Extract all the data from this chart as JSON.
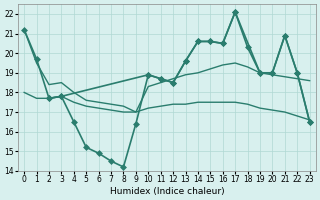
{
  "xlabel": "Humidex (Indice chaleur)",
  "ylabel": "",
  "xlim": [
    -0.5,
    23.5
  ],
  "ylim": [
    14,
    22.5
  ],
  "yticks": [
    14,
    15,
    16,
    17,
    18,
    19,
    20,
    21,
    22
  ],
  "xticks": [
    0,
    1,
    2,
    3,
    4,
    5,
    6,
    7,
    8,
    9,
    10,
    11,
    12,
    13,
    14,
    15,
    16,
    17,
    18,
    19,
    20,
    21,
    22,
    23
  ],
  "background_color": "#d8f0ee",
  "line_color": "#2a7d6e",
  "grid_color": "#b0d8d4",
  "series": [
    {
      "x": [
        0,
        1,
        2,
        3,
        4,
        5,
        6,
        7,
        8,
        9,
        10,
        11,
        12,
        13,
        14,
        15,
        16,
        17,
        18,
        19,
        20,
        21,
        22,
        23
      ],
      "y": [
        21.2,
        19.7,
        17.7,
        17.8,
        16.5,
        15.2,
        14.9,
        14.5,
        14.2,
        16.4,
        18.9,
        18.7,
        18.5,
        19.6,
        20.6,
        20.6,
        20.5,
        22.1,
        20.3,
        19.0,
        19.0,
        20.9,
        19.0,
        16.5
      ],
      "marker": "D",
      "markersize": 3,
      "linewidth": 1.2,
      "has_marker": true
    },
    {
      "x": [
        0,
        1,
        2,
        3,
        4,
        5,
        6,
        7,
        8,
        9,
        10,
        11,
        12,
        13,
        14,
        15,
        16,
        17,
        18,
        19,
        20,
        21,
        22,
        23
      ],
      "y": [
        21.2,
        19.5,
        18.4,
        18.5,
        18.0,
        17.6,
        17.5,
        17.4,
        17.3,
        17.0,
        18.3,
        18.5,
        18.7,
        18.9,
        19.0,
        19.2,
        19.4,
        19.5,
        19.3,
        19.0,
        18.9,
        18.8,
        18.7,
        18.6
      ],
      "marker": null,
      "markersize": 0,
      "linewidth": 1.0,
      "has_marker": false
    },
    {
      "x": [
        0,
        1,
        2,
        3,
        4,
        5,
        6,
        7,
        8,
        9,
        10,
        11,
        12,
        13,
        14,
        15,
        16,
        17,
        18,
        19,
        20,
        21,
        22,
        23
      ],
      "y": [
        18.0,
        17.7,
        17.7,
        17.8,
        17.5,
        17.3,
        17.2,
        17.1,
        17.0,
        17.0,
        17.2,
        17.3,
        17.4,
        17.4,
        17.5,
        17.5,
        17.5,
        17.5,
        17.4,
        17.2,
        17.1,
        17.0,
        16.8,
        16.6
      ],
      "marker": null,
      "markersize": 0,
      "linewidth": 1.0,
      "has_marker": false
    },
    {
      "x": [
        2,
        3,
        10,
        11,
        12,
        13,
        14,
        15,
        16,
        17,
        19,
        20,
        21,
        22,
        23
      ],
      "y": [
        17.7,
        17.8,
        18.9,
        18.7,
        18.5,
        19.6,
        20.6,
        20.6,
        20.5,
        22.1,
        19.0,
        19.0,
        20.9,
        19.0,
        16.5
      ],
      "marker": "D",
      "markersize": 3,
      "linewidth": 1.2,
      "has_marker": true
    }
  ]
}
